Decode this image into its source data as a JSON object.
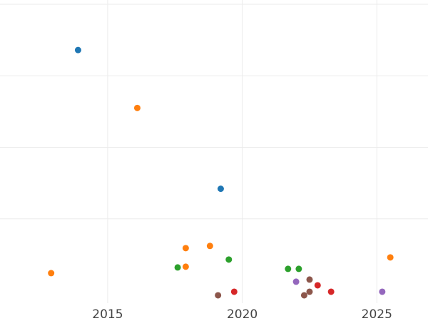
{
  "chart_data": {
    "type": "scatter",
    "title": "",
    "xlabel": "",
    "ylabel": "",
    "xlim": [
      2011.0,
      2026.9
    ],
    "ylim": [
      -0.9,
      20.3
    ],
    "x_ticks": [
      {
        "value": 2015,
        "label": "2015"
      },
      {
        "value": 2020,
        "label": "2020"
      },
      {
        "value": 2025,
        "label": "2025"
      }
    ],
    "y_gridlines": [
      5,
      10,
      15,
      20
    ],
    "y_tick_labels_shown": false,
    "grid": true,
    "legend": "none",
    "series": [
      {
        "color": "#1f77b4",
        "points": [
          {
            "x": 2013.9,
            "y": 16.8
          },
          {
            "x": 2019.2,
            "y": 7.1
          }
        ]
      },
      {
        "color": "#ff7f0e",
        "points": [
          {
            "x": 2012.9,
            "y": 1.2
          },
          {
            "x": 2016.1,
            "y": 12.75
          },
          {
            "x": 2017.9,
            "y": 2.95
          },
          {
            "x": 2017.9,
            "y": 1.65
          },
          {
            "x": 2018.8,
            "y": 3.1
          },
          {
            "x": 2025.5,
            "y": 2.3
          }
        ]
      },
      {
        "color": "#2ca02c",
        "points": [
          {
            "x": 2017.6,
            "y": 1.6
          },
          {
            "x": 2019.5,
            "y": 2.15
          },
          {
            "x": 2021.7,
            "y": 1.5
          },
          {
            "x": 2022.1,
            "y": 1.5
          }
        ]
      },
      {
        "color": "#d62728",
        "points": [
          {
            "x": 2019.7,
            "y": -0.1
          },
          {
            "x": 2022.8,
            "y": 0.35
          },
          {
            "x": 2023.3,
            "y": -0.1
          }
        ]
      },
      {
        "color": "#9467bd",
        "points": [
          {
            "x": 2022.0,
            "y": 0.6
          },
          {
            "x": 2025.2,
            "y": -0.1
          }
        ]
      },
      {
        "color": "#8c564b",
        "points": [
          {
            "x": 2019.1,
            "y": -0.35
          },
          {
            "x": 2022.3,
            "y": -0.35
          },
          {
            "x": 2022.5,
            "y": 0.75
          },
          {
            "x": 2022.5,
            "y": -0.1
          }
        ]
      }
    ]
  }
}
